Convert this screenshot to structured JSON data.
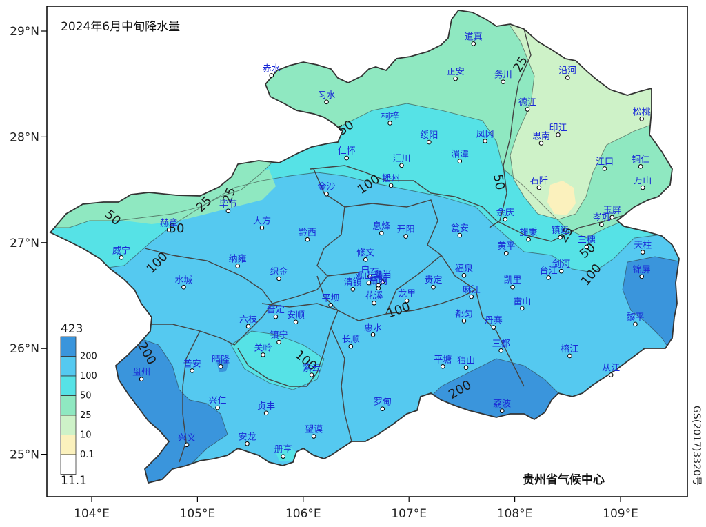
{
  "chart_data": {
    "type": "map",
    "title": "2024年6月中旬降水量",
    "x_ticks": [
      "104°E",
      "105°E",
      "106°E",
      "107°E",
      "108°E",
      "109°E"
    ],
    "y_ticks": [
      "29°N",
      "28°N",
      "27°N",
      "26°N",
      "25°N"
    ],
    "legend": {
      "max_label": "423",
      "min_label": "11.1",
      "levels": [
        {
          "label": "200",
          "color": "#3a95dc"
        },
        {
          "label": "100",
          "color": "#55c9f0"
        },
        {
          "label": "50",
          "color": "#56e2e6"
        },
        {
          "label": "25",
          "color": "#8fe8c1"
        },
        {
          "label": "10",
          "color": "#cef2c8"
        },
        {
          "label": "0.1",
          "color": "#fbf1bd"
        },
        {
          "label": "",
          "color": "#ffffff"
        }
      ]
    },
    "contour_labels": [
      "25",
      "25",
      "25",
      "25",
      "50",
      "50",
      "50",
      "50",
      "50",
      "100",
      "100",
      "100",
      "100",
      "100",
      "200",
      "200"
    ],
    "stations": [
      {
        "name": "道真",
        "lon": 107.61,
        "lat": 28.88
      },
      {
        "name": "赤水",
        "lon": 105.7,
        "lat": 28.58
      },
      {
        "name": "正安",
        "lon": 107.44,
        "lat": 28.55
      },
      {
        "name": "务川",
        "lon": 107.89,
        "lat": 28.52
      },
      {
        "name": "沿河",
        "lon": 108.5,
        "lat": 28.56
      },
      {
        "name": "习水",
        "lon": 106.22,
        "lat": 28.33
      },
      {
        "name": "德江",
        "lon": 108.12,
        "lat": 28.26
      },
      {
        "name": "桐梓",
        "lon": 106.82,
        "lat": 28.13
      },
      {
        "name": "松桃",
        "lon": 109.2,
        "lat": 28.17
      },
      {
        "name": "绥阳",
        "lon": 107.19,
        "lat": 27.95
      },
      {
        "name": "凤冈",
        "lon": 107.72,
        "lat": 27.96
      },
      {
        "name": "印江",
        "lon": 108.41,
        "lat": 28.02
      },
      {
        "name": "思南",
        "lon": 108.25,
        "lat": 27.94
      },
      {
        "name": "仁怀",
        "lon": 106.41,
        "lat": 27.8
      },
      {
        "name": "湄潭",
        "lon": 107.48,
        "lat": 27.77
      },
      {
        "name": "汇川",
        "lon": 106.93,
        "lat": 27.73
      },
      {
        "name": "江口",
        "lon": 108.85,
        "lat": 27.7
      },
      {
        "name": "铜仁",
        "lon": 109.19,
        "lat": 27.72
      },
      {
        "name": "播州",
        "lon": 106.83,
        "lat": 27.54
      },
      {
        "name": "金沙",
        "lon": 106.22,
        "lat": 27.46
      },
      {
        "name": "石阡",
        "lon": 108.23,
        "lat": 27.52
      },
      {
        "name": "万山",
        "lon": 109.21,
        "lat": 27.52
      },
      {
        "name": "毕节",
        "lon": 105.29,
        "lat": 27.3
      },
      {
        "name": "赫章",
        "lon": 104.73,
        "lat": 27.12
      },
      {
        "name": "大方",
        "lon": 105.61,
        "lat": 27.14
      },
      {
        "name": "黔西",
        "lon": 106.04,
        "lat": 27.03
      },
      {
        "name": "息烽",
        "lon": 106.74,
        "lat": 27.09
      },
      {
        "name": "开阳",
        "lon": 106.97,
        "lat": 27.06
      },
      {
        "name": "余庆",
        "lon": 107.91,
        "lat": 27.22
      },
      {
        "name": "瓮安",
        "lon": 107.48,
        "lat": 27.07
      },
      {
        "name": "施秉",
        "lon": 108.13,
        "lat": 27.03
      },
      {
        "name": "镇远",
        "lon": 108.43,
        "lat": 27.05
      },
      {
        "name": "岑巩",
        "lon": 108.82,
        "lat": 27.17
      },
      {
        "name": "玉屏",
        "lon": 108.92,
        "lat": 27.24
      },
      {
        "name": "黄平",
        "lon": 107.92,
        "lat": 26.9
      },
      {
        "name": "三穗",
        "lon": 108.68,
        "lat": 26.96
      },
      {
        "name": "天柱",
        "lon": 109.21,
        "lat": 26.91
      },
      {
        "name": "威宁",
        "lon": 104.28,
        "lat": 26.86
      },
      {
        "name": "纳雍",
        "lon": 105.38,
        "lat": 26.78
      },
      {
        "name": "修文",
        "lon": 106.59,
        "lat": 26.84
      },
      {
        "name": "白云",
        "lon": 106.63,
        "lat": 26.68
      },
      {
        "name": "乌当",
        "lon": 106.75,
        "lat": 26.63
      },
      {
        "name": "福泉",
        "lon": 107.52,
        "lat": 26.69
      },
      {
        "name": "台江",
        "lon": 108.32,
        "lat": 26.67
      },
      {
        "name": "剑河",
        "lon": 108.44,
        "lat": 26.73
      },
      {
        "name": "织金",
        "lon": 105.77,
        "lat": 26.66
      },
      {
        "name": "清镇",
        "lon": 106.47,
        "lat": 26.56
      },
      {
        "name": "南明",
        "lon": 106.71,
        "lat": 26.57
      },
      {
        "name": "云岩",
        "lon": 106.71,
        "lat": 26.6
      },
      {
        "name": "观山湖",
        "lon": 106.62,
        "lat": 26.62
      },
      {
        "name": "贵定",
        "lon": 107.23,
        "lat": 26.58
      },
      {
        "name": "凯里",
        "lon": 107.98,
        "lat": 26.58
      },
      {
        "name": "麻江",
        "lon": 107.59,
        "lat": 26.49
      },
      {
        "name": "锦屏",
        "lon": 109.2,
        "lat": 26.68
      },
      {
        "name": "水城",
        "lon": 104.87,
        "lat": 26.58
      },
      {
        "name": "花溪",
        "lon": 106.67,
        "lat": 26.43
      },
      {
        "name": "龙里",
        "lon": 106.98,
        "lat": 26.45
      },
      {
        "name": "平坝",
        "lon": 106.26,
        "lat": 26.41
      },
      {
        "name": "雷山",
        "lon": 108.07,
        "lat": 26.38
      },
      {
        "name": "都匀",
        "lon": 107.52,
        "lat": 26.26
      },
      {
        "name": "普定",
        "lon": 105.74,
        "lat": 26.3
      },
      {
        "name": "安顺",
        "lon": 105.93,
        "lat": 26.25
      },
      {
        "name": "六枝",
        "lon": 105.48,
        "lat": 26.21
      },
      {
        "name": "黎平",
        "lon": 109.14,
        "lat": 26.23
      },
      {
        "name": "丹寨",
        "lon": 107.8,
        "lat": 26.2
      },
      {
        "name": "惠水",
        "lon": 106.66,
        "lat": 26.13
      },
      {
        "name": "镇宁",
        "lon": 105.77,
        "lat": 26.06
      },
      {
        "name": "长顺",
        "lon": 106.45,
        "lat": 26.02
      },
      {
        "name": "三都",
        "lon": 107.87,
        "lat": 25.98
      },
      {
        "name": "关岭",
        "lon": 105.62,
        "lat": 25.94
      },
      {
        "name": "晴隆",
        "lon": 105.22,
        "lat": 25.83
      },
      {
        "name": "普安",
        "lon": 104.95,
        "lat": 25.79
      },
      {
        "name": "盘州",
        "lon": 104.47,
        "lat": 25.71
      },
      {
        "name": "紫云",
        "lon": 106.08,
        "lat": 25.75
      },
      {
        "name": "平塘",
        "lon": 107.32,
        "lat": 25.83
      },
      {
        "name": "独山",
        "lon": 107.54,
        "lat": 25.82
      },
      {
        "name": "榕江",
        "lon": 108.52,
        "lat": 25.93
      },
      {
        "name": "从江",
        "lon": 108.91,
        "lat": 25.75
      },
      {
        "name": "兴仁",
        "lon": 105.19,
        "lat": 25.44
      },
      {
        "name": "贞丰",
        "lon": 105.65,
        "lat": 25.39
      },
      {
        "name": "罗甸",
        "lon": 106.75,
        "lat": 25.43
      },
      {
        "name": "荔波",
        "lon": 107.88,
        "lat": 25.41
      },
      {
        "name": "望谟",
        "lon": 106.1,
        "lat": 25.17
      },
      {
        "name": "安龙",
        "lon": 105.47,
        "lat": 25.1
      },
      {
        "name": "兴义",
        "lon": 104.9,
        "lat": 25.09
      },
      {
        "name": "册亨",
        "lon": 105.81,
        "lat": 24.98
      }
    ],
    "grid": false
  },
  "source": "贵州省气候中心",
  "license": "GS(2017)3320号",
  "colors": {
    "c200": "#3a95dc",
    "c100": "#55c9f0",
    "c50": "#56e2e6",
    "c25": "#8fe8c1",
    "c10": "#cef2c8",
    "c01": "#fbf1bd",
    "boundary": "#444444"
  }
}
